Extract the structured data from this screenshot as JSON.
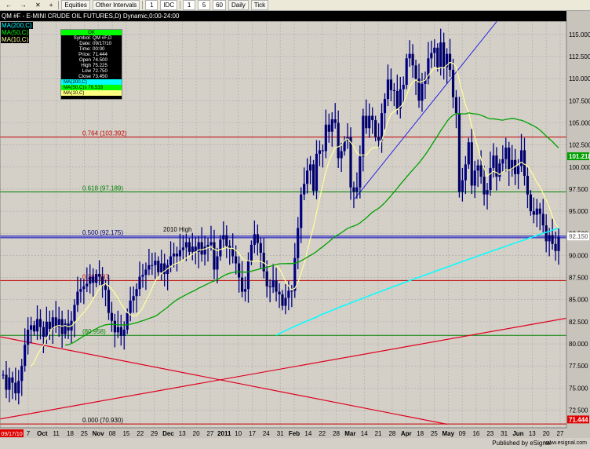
{
  "toolbar": {
    "items": [
      "Equities",
      "Other Intervals",
      "1",
      "IDC",
      "1",
      "5",
      "60",
      "Daily",
      "Tick"
    ]
  },
  "chart_title": "QM #F - E-MINI CRUDE OIL FUTURES,D) Dynamic,0:00-24:00",
  "ma_labels": {
    "ma200": "MA(200,C)",
    "ma50": "MA(50,C)",
    "ma10": "MA(10,C)"
  },
  "info_box": {
    "ok": "OK",
    "rows": [
      [
        "Symbol:",
        "QM #F,D"
      ],
      [
        "Date:",
        "09/17/10"
      ],
      [
        "Time:",
        "00:00"
      ],
      [
        "Price:",
        "71.444"
      ],
      [
        "Open",
        "74.500"
      ],
      [
        "High",
        "75.225"
      ],
      [
        "Low",
        "72.750"
      ],
      [
        "Close",
        "73.450"
      ]
    ],
    "ma200": "MA(200,C)",
    "ma50": "MA(50,C)s 76.533",
    "ma10": "MA(10,C)"
  },
  "price_axis": {
    "ticks": [
      "115.000",
      "112.500",
      "110.000",
      "107.500",
      "105.000",
      "102.500",
      "100.000",
      "97.500",
      "95.000",
      "92.500",
      "90.000",
      "87.500",
      "85.000",
      "82.500",
      "80.000",
      "77.500",
      "75.000",
      "72.500"
    ],
    "badges": [
      {
        "label": "101.218",
        "value": 101.218,
        "bg": "#00a000",
        "fg": "#ffffff"
      },
      {
        "label": "92.150",
        "value": 92.15,
        "bg": "#ffffff",
        "fg": "#888888"
      },
      {
        "label": "71.444",
        "value": 71.444,
        "bg": "#e00000",
        "fg": "#ffffff"
      }
    ]
  },
  "date_axis": {
    "first_label": "09/17/10",
    "labels": [
      {
        "t": "7"
      },
      {
        "t": "Oct",
        "month": true
      },
      {
        "t": "11"
      },
      {
        "t": "18"
      },
      {
        "t": "25"
      },
      {
        "t": "Nov",
        "month": true
      },
      {
        "t": "08"
      },
      {
        "t": "15"
      },
      {
        "t": "22"
      },
      {
        "t": "29"
      },
      {
        "t": "Dec",
        "month": true
      },
      {
        "t": "13"
      },
      {
        "t": "20"
      },
      {
        "t": "27"
      },
      {
        "t": "2011",
        "month": true
      },
      {
        "t": "10"
      },
      {
        "t": "17"
      },
      {
        "t": "24"
      },
      {
        "t": "31"
      },
      {
        "t": "Feb",
        "month": true
      },
      {
        "t": "14"
      },
      {
        "t": "22"
      },
      {
        "t": "28"
      },
      {
        "t": "Mar",
        "month": true
      },
      {
        "t": "14"
      },
      {
        "t": "21"
      },
      {
        "t": "28"
      },
      {
        "t": "Apr",
        "month": true
      },
      {
        "t": "18"
      },
      {
        "t": "25"
      },
      {
        "t": "May",
        "month": true
      },
      {
        "t": "09"
      },
      {
        "t": "16"
      },
      {
        "t": "23"
      },
      {
        "t": "31"
      },
      {
        "t": "Jun",
        "month": true
      },
      {
        "t": "13"
      },
      {
        "t": "20"
      },
      {
        "t": "27"
      }
    ]
  },
  "fib_levels": [
    {
      "label": "0.764 (103.392)",
      "value": 103.392,
      "color": "#c00000",
      "label_color": "#c00000"
    },
    {
      "label": "0.618 (97.189)",
      "value": 97.189,
      "color": "#008000",
      "label_color": "#008000"
    },
    {
      "label": "0.500 (92.175)",
      "value": 92.175,
      "color": "#0000c0",
      "label_color": "#000080"
    },
    {
      "label": "0.382 (87.",
      "value": 87.16,
      "color": "#c00000",
      "label_color": "#c00000"
    },
    {
      "label": "(80.958)",
      "value": 80.958,
      "color": "#008000",
      "label_color": "#008000"
    },
    {
      "label": "0.000 (70.930)",
      "value": 70.93,
      "color": "#c00000",
      "label_color": "#000000"
    }
  ],
  "annotation_2010_high": "2010 High",
  "footer": {
    "published": "Published by eSignal",
    "brand": "www.esignal.com"
  },
  "colors": {
    "background": "#d4d0c8",
    "grid": "#a8a8a8",
    "bar": "#000080",
    "ma10": "#ffff99",
    "ma50": "#00a000",
    "ma200": "#00ffff",
    "trendline_blue": "#2020e0",
    "trendline_red": "#e00020"
  },
  "chart_data": {
    "type": "ohlc",
    "y_axis_range": [
      70.5,
      116.5
    ],
    "note_series": [
      "QM #F daily bars",
      "MA(10,C)",
      "MA(50,C)",
      "MA(200,C)"
    ],
    "key_points": {
      "2010_high": 92.175,
      "low_start": 70.93,
      "high_peak": 114.8,
      "last_close": 92.15
    },
    "closes": [
      76.5,
      74.8,
      76.2,
      75.6,
      74.4,
      75.8,
      77.5,
      79.9,
      81.6,
      82.1,
      81.4,
      82.8,
      81.9,
      80.8,
      82.5,
      81.7,
      83.0,
      81.9,
      82.8,
      81.1,
      82.3,
      81.5,
      82.6,
      84.4,
      85.9,
      86.2,
      86.5,
      86.8,
      87.6,
      86.9,
      87.9,
      87.6,
      86.6,
      86.1,
      83.5,
      82.6,
      81.3,
      81.9,
      80.9,
      81.6,
      83.5,
      84.9,
      85.4,
      86.2,
      87.6,
      87.8,
      88.4,
      88.9,
      88.9,
      89.4,
      88.1,
      89.1,
      87.9,
      88.9,
      89.9,
      90.2,
      89.9,
      90.6,
      90.9,
      91.5,
      90.4,
      91.0,
      90.4,
      91.5,
      90.1,
      91.0,
      91.2,
      91.5,
      88.4,
      89.9,
      91.8,
      92.3,
      91.1,
      90.8,
      89.9,
      89.1,
      87.5,
      85.9,
      86.2,
      89.4,
      91.2,
      92.4,
      91.4,
      90.3,
      88.2,
      86.5,
      86.4,
      87.2,
      85.9,
      85.6,
      84.3,
      85.2,
      86.0,
      86.0,
      89.7,
      93.1,
      96.9,
      98.1,
      99.6,
      100.3,
      97.3,
      101.5,
      101.9,
      101.8,
      104.8,
      104.0,
      105.4,
      105.0,
      101.0,
      101.8,
      103.0,
      103.4,
      97.7,
      97.2,
      97.7,
      101.2,
      105.8,
      104.4,
      105.8,
      105.3,
      103.4,
      103.0,
      106.1,
      107.7,
      109.9,
      108.7,
      108.6,
      106.6,
      108.8,
      109.3,
      112.3,
      112.8,
      111.5,
      110.0,
      107.5,
      109.4,
      110.0,
      112.3,
      112.9,
      113.5,
      111.3,
      114.1,
      111.3,
      112.8,
      111.0,
      107.9,
      106.1,
      97.2,
      98.5,
      100.3,
      102.8,
      97.9,
      99.6,
      100.2,
      98.9,
      96.9,
      97.4,
      99.9,
      101.3,
      98.9,
      100.4,
      100.9,
      102.2,
      99.7,
      100.8,
      99.2,
      100.1,
      101.9,
      99.0,
      96.9,
      95.0,
      94.6,
      95.3,
      94.7,
      93.4,
      91.6,
      92.3,
      91.3,
      90.5,
      92.1
    ]
  }
}
